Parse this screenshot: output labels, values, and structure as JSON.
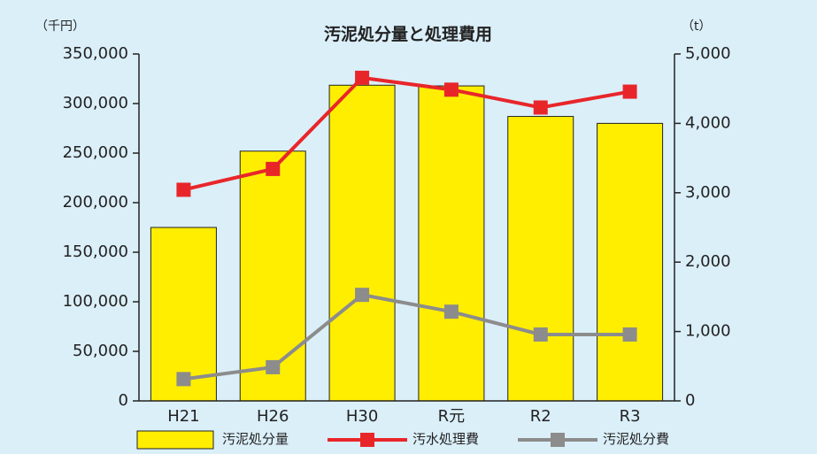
{
  "chart_data": {
    "type": "bar-line",
    "title": "汚泥処分量と処理費用",
    "y_label": "（千円）",
    "y2_label": "（t）",
    "categories": [
      "H21",
      "H26",
      "H30",
      "R元",
      "R2",
      "R3"
    ],
    "series": [
      {
        "name": "汚泥処分量",
        "type": "bar",
        "axis": "y2",
        "color": "#ffee00",
        "values": [
          2500,
          3600,
          4550,
          4540,
          4100,
          4000
        ]
      },
      {
        "name": "汚水処理費",
        "type": "line",
        "axis": "y",
        "color": "#e8262a",
        "values": [
          213000,
          234000,
          326000,
          314000,
          296000,
          312000
        ]
      },
      {
        "name": "汚泥処分費",
        "type": "line",
        "axis": "y",
        "color": "#8c8c8c",
        "values": [
          22000,
          34000,
          107000,
          90000,
          67000,
          67000
        ]
      }
    ],
    "ylim": [
      0,
      350000
    ],
    "yticks": [
      0,
      {
        "value": 50000,
        "label": "50,000"
      },
      {
        "value": 100000,
        "label": "100,000"
      },
      {
        "value": 150000,
        "label": "150,000"
      },
      {
        "value": 200000,
        "label": "200,000"
      },
      {
        "value": 250000,
        "label": "250,000"
      },
      {
        "value": 300000,
        "label": "300,000"
      },
      {
        "value": 350000,
        "label": "350,000"
      }
    ],
    "y2lim": [
      0,
      5000
    ],
    "y2ticks": [
      0,
      {
        "value": 1000,
        "label": "1,000"
      },
      {
        "value": 2000,
        "label": "2,000"
      },
      {
        "value": 3000,
        "label": "3,000"
      },
      {
        "value": 4000,
        "label": "4,000"
      },
      {
        "value": 5000,
        "label": "5,000"
      }
    ]
  }
}
